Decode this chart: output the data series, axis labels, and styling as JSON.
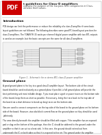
{
  "page_bg": "#ffffff",
  "pdf_icon_color": "#cc0000",
  "pdf_icon_text": "PDF",
  "pdf_icon_text_color": "#ffffff",
  "header_title": "t guidelines for Class-D amplifiers",
  "header_line1": "explains the purpose of the low pass filter components in Class-",
  "header_line2": "alculate their values.",
  "intro_heading": "Introduction",
  "intro_lines": [
    "PCB design can limit the performance or reduce the reliability of a class-D amplifier if some basic",
    "layout guidelines are not followed. The following describes some good PC board layout practices for",
    "class-D amplifiers. The TDA8978 (15 watts per channel) digital power amplifier with two BTL outputs",
    "is used as an example, but the basic concepts are the same for all class-D amplifiers."
  ],
  "figure_caption": "Figure 1 - Schematic for a stereo BTL class-D power amplifier",
  "ground_heading": "Ground plane",
  "ground_lines1": [
    "A good ground plane is the key to a good class-D amplifier layout. The bottom side of the circuit",
    "board should be used exclusively as a ground plane if possible; a full ground plane will provide the",
    "best performing and most reliable design. If you must place signal or power traces on the bottom side",
    "of the board, keep them as short as possible. If necessary, bring the trace back to the top side of",
    "the board via a short distance to break up long traces on the bottom side."
  ],
  "ground_lines2": [
    "Vias are used to connect components on the top side of the board to the ground plane on the bottom",
    "side of the board. However, vias also block current flow on the ground plane so they should be used",
    "judiciously."
  ],
  "ground_lines3": [
    "The area directly beneath the amplifier should be filled with copper. If the amplifier has an exposed",
    "pad or slug on the bottom of the package, then the IC should be soldered to the ground under the",
    "amplifier so that it can act as a heat sink. In this case, the ground should extend out from",
    "underneath the IC on both sides so that it is exposed to free air. The ground under the amplifier",
    "should have many vias to conduct heat to the bottom of the board so it can be used as a heat sink",
    "as well."
  ],
  "text_color": "#1a1a1a",
  "heading_color": "#000000",
  "separator_color": "#bbbbbb",
  "schematic_bg": "#f2f2f2",
  "schematic_border": "#aaaaaa"
}
